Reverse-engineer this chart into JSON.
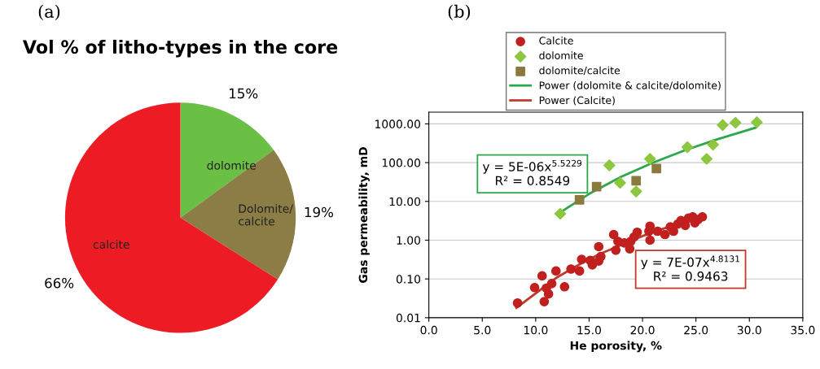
{
  "chart_data": [
    {
      "type": "pie",
      "title": "Vol % of litho-types in the core",
      "annotations": [
        "(a)"
      ],
      "categories": [
        "dolomite",
        "Dolomite/\ncalcite",
        "calcite"
      ],
      "values": [
        15,
        19,
        66
      ],
      "value_labels": [
        "15%",
        "19%",
        "66%"
      ],
      "colors": [
        "#6abf45",
        "#8b7d45",
        "#ed1c24"
      ]
    },
    {
      "type": "scatter",
      "xlabel": "He porosity, %",
      "ylabel": "Gas permeability, mD",
      "log": "y",
      "grid": "y",
      "legend": "top",
      "annotations": [
        "(b)",
        "y = 5E-06x$^{5.5229}$\nR² = 0.8549",
        "y = 7E-07x$^{4.8131}$\nR² = 0.9463"
      ],
      "xlim": [
        0,
        35
      ],
      "xticks": [
        {
          "value": 0,
          "label": "0.0"
        },
        {
          "value": 5,
          "label": "5.0"
        },
        {
          "value": 10,
          "label": "10.0"
        },
        {
          "value": 15,
          "label": "15.0"
        },
        {
          "value": 20,
          "label": "20.0"
        },
        {
          "value": 25,
          "label": "25.0"
        },
        {
          "value": 30,
          "label": "30.0"
        },
        {
          "value": 35,
          "label": "35.0"
        }
      ],
      "ylim": [
        0.01,
        2000
      ],
      "yticks": [
        {
          "value": 0.01,
          "label": "0.01"
        },
        {
          "value": 0.1,
          "label": "0.10"
        },
        {
          "value": 1,
          "label": "1.00"
        },
        {
          "value": 10,
          "label": "10.00"
        },
        {
          "value": 100,
          "label": "100.00"
        },
        {
          "value": 1000,
          "label": "1000.00"
        }
      ],
      "series": [
        {
          "name": "Calcite",
          "type": "scatter",
          "marker": "circle",
          "color": "#c0201e",
          "x": [
            8.3,
            9.9,
            10.6,
            10.8,
            11.0,
            11.2,
            11.5,
            11.9,
            12.7,
            13.3,
            14.1,
            14.3,
            15.1,
            15.3,
            15.9,
            15.9,
            16.1,
            17.3,
            17.5,
            17.7,
            18.3,
            18.8,
            18.9,
            19.2,
            19.5,
            20.6,
            20.7,
            20.7,
            21.4,
            22.1,
            22.6,
            22.9,
            23.3,
            23.6,
            24.0,
            24.3,
            24.7,
            24.9,
            25.2,
            25.6
          ],
          "values": [
            0.024,
            0.06,
            0.12,
            0.026,
            0.058,
            0.041,
            0.076,
            0.16,
            0.063,
            0.18,
            0.16,
            0.32,
            0.3,
            0.23,
            0.29,
            0.68,
            0.38,
            1.4,
            0.55,
            0.93,
            0.85,
            0.6,
            0.93,
            1.2,
            1.6,
            1.7,
            2.3,
            1.0,
            1.7,
            1.4,
            2.2,
            1.7,
            2.6,
            3.2,
            2.4,
            3.7,
            4.0,
            2.8,
            3.4,
            4.0
          ]
        },
        {
          "name": "dolomite",
          "type": "scatter",
          "marker": "diamond",
          "color": "#8dc63f",
          "x": [
            12.3,
            16.9,
            17.9,
            19.4,
            20.7,
            24.2,
            26.0,
            26.6,
            27.5,
            28.7,
            30.7
          ],
          "values": [
            4.8,
            85,
            30,
            18,
            125,
            250,
            125,
            290,
            930,
            1070,
            1100
          ]
        },
        {
          "name": "dolomite/calcite",
          "type": "scatter",
          "marker": "square",
          "color": "#8b7a3e",
          "x": [
            14.1,
            15.7,
            19.4,
            21.3
          ],
          "values": [
            11,
            24,
            34,
            70
          ]
        },
        {
          "name": "Power (dolomite & calcite/dolomite)",
          "type": "line",
          "marker": "none",
          "color": "#2ca84a",
          "x": [
            12.2,
            15,
            18,
            21,
            24,
            27,
            30.6
          ],
          "values": [
            5.0,
            15.6,
            43,
            100,
            210,
            400,
            800
          ]
        },
        {
          "name": "Power (Calcite)",
          "type": "line",
          "marker": "none",
          "color": "#c0392b",
          "x": [
            8.2,
            12,
            14,
            16,
            20,
            22,
            25.6
          ],
          "values": [
            0.018,
            0.11,
            0.23,
            0.44,
            1.28,
            2.0,
            4.2
          ]
        }
      ]
    }
  ]
}
